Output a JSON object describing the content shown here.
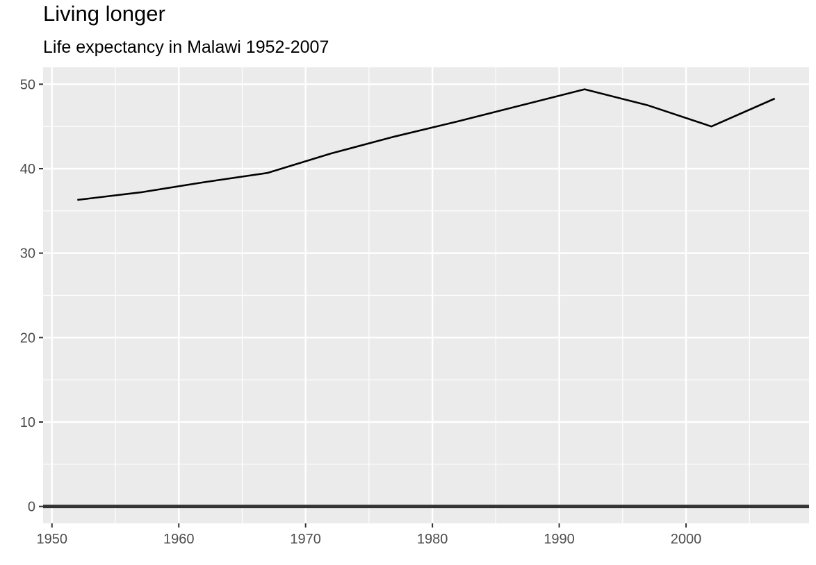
{
  "chart_data": {
    "type": "line",
    "title": "Living longer",
    "subtitle": "Life expectancy in Malawi 1952-2007",
    "xlabel": "",
    "ylabel": "",
    "x": [
      1952,
      1957,
      1962,
      1967,
      1972,
      1977,
      1982,
      1987,
      1992,
      1997,
      2002,
      2007
    ],
    "series": [
      {
        "values": [
          36.3,
          37.2,
          38.4,
          39.5,
          41.8,
          43.8,
          45.6,
          47.5,
          49.4,
          47.5,
          45.0,
          48.3
        ]
      }
    ],
    "xlim": [
      1949.3,
      2009.7
    ],
    "ylim": [
      -2.0,
      52.0
    ],
    "x_ticks": [
      1950,
      1960,
      1970,
      1980,
      1990,
      2000
    ],
    "y_ticks": [
      0,
      10,
      20,
      30,
      40,
      50
    ],
    "x_tick_labels": [
      "1950",
      "1960",
      "1970",
      "1980",
      "1990",
      "2000"
    ],
    "y_tick_labels": [
      "0",
      "10",
      "20",
      "30",
      "40",
      "50"
    ],
    "reference_line_y": 0,
    "grid": true,
    "legend": "none",
    "colors": {
      "panel_background": "#ebebeb",
      "grid": "#ffffff",
      "line": "#000000",
      "reference_line": "#333333",
      "tick_text": "#4d4d4d"
    }
  }
}
